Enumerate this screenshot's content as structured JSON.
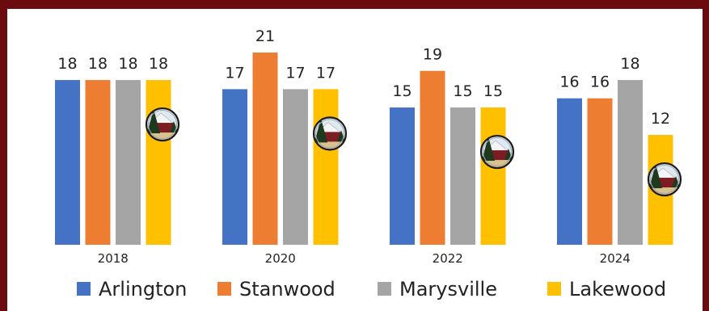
{
  "chart_data": {
    "type": "bar",
    "categories": [
      "2018",
      "2020",
      "2022",
      "2024"
    ],
    "series": [
      {
        "name": "Arlington",
        "color": "#4472c4",
        "values": [
          18,
          17,
          15,
          16
        ]
      },
      {
        "name": "Stanwood",
        "color": "#ed7d31",
        "values": [
          18,
          21,
          19,
          16
        ]
      },
      {
        "name": "Marysville",
        "color": "#a5a5a5",
        "values": [
          18,
          17,
          15,
          18
        ]
      },
      {
        "name": "Lakewood",
        "color": "#ffc000",
        "values": [
          18,
          17,
          15,
          12
        ]
      }
    ],
    "title": "",
    "xlabel": "",
    "ylabel": "",
    "ylim": [
      0,
      22
    ],
    "grid": false,
    "legend": "bottom",
    "data_labels": true,
    "marker_icon": "lakewood-logo-icon"
  }
}
